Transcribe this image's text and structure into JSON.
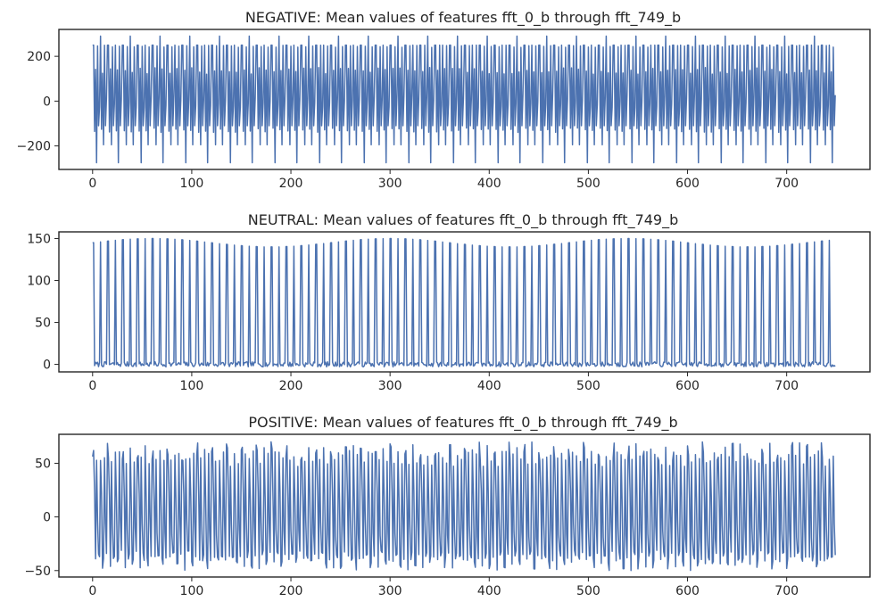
{
  "colors": {
    "line": "#4c72b0",
    "axes": "#262626",
    "background": "#ffffff"
  },
  "chart_data": [
    {
      "type": "line",
      "title": "NEGATIVE: Mean values of features fft_0_b through fft_749_b",
      "xlabel": "",
      "ylabel": "",
      "xlim": [
        -34,
        784
      ],
      "ylim": [
        -305,
        320
      ],
      "xticks": [
        0,
        100,
        200,
        300,
        400,
        500,
        600,
        700
      ],
      "xtick_labels": [
        "0",
        "100",
        "200",
        "300",
        "400",
        "500",
        "600",
        "700"
      ],
      "yticks": [
        -200,
        0,
        200
      ],
      "ytick_labels": [
        "−200",
        "0",
        "200"
      ],
      "grid": false,
      "series": [
        {
          "signal": {
            "n": 750,
            "period": 7.5,
            "high": 250,
            "high_peak": 290,
            "low": -110,
            "low_dip": -195,
            "extreme_dip": -275,
            "sub_peak": 150,
            "sub_dip": -140
          }
        }
      ]
    },
    {
      "type": "line",
      "title": "NEUTRAL: Mean values of features fft_0_b through fft_749_b",
      "xlabel": "",
      "ylabel": "",
      "xlim": [
        -34,
        784
      ],
      "ylim": [
        -9,
        158
      ],
      "xticks": [
        0,
        100,
        200,
        300,
        400,
        500,
        600,
        700
      ],
      "xtick_labels": [
        "0",
        "100",
        "200",
        "300",
        "400",
        "500",
        "600",
        "700"
      ],
      "yticks": [
        0,
        50,
        100,
        150
      ],
      "ytick_labels": [
        "0",
        "50",
        "100",
        "150"
      ],
      "grid": false,
      "series": [
        {
          "signal": {
            "n": 750,
            "period": 7.5,
            "peak_min": 140,
            "peak_max": 150,
            "baseline": 0,
            "noise": 3
          }
        }
      ]
    },
    {
      "type": "line",
      "title": "POSITIVE: Mean values of features fft_0_b through fft_749_b",
      "xlabel": "",
      "ylabel": "",
      "xlim": [
        -34,
        784
      ],
      "ylim": [
        -56,
        77
      ],
      "xticks": [
        0,
        100,
        200,
        300,
        400,
        500,
        600,
        700
      ],
      "xtick_labels": [
        "0",
        "100",
        "200",
        "300",
        "400",
        "500",
        "600",
        "700"
      ],
      "yticks": [
        -50,
        0,
        50
      ],
      "ytick_labels": [
        "−50",
        "0",
        "50"
      ],
      "grid": false,
      "series": [
        {
          "signal": {
            "n": 750,
            "period": 7.5,
            "peak_min": 52,
            "peak_max": 70,
            "dip_min": -50,
            "dip_max": -36,
            "mid": 20,
            "mid_low": -10
          }
        }
      ]
    }
  ]
}
